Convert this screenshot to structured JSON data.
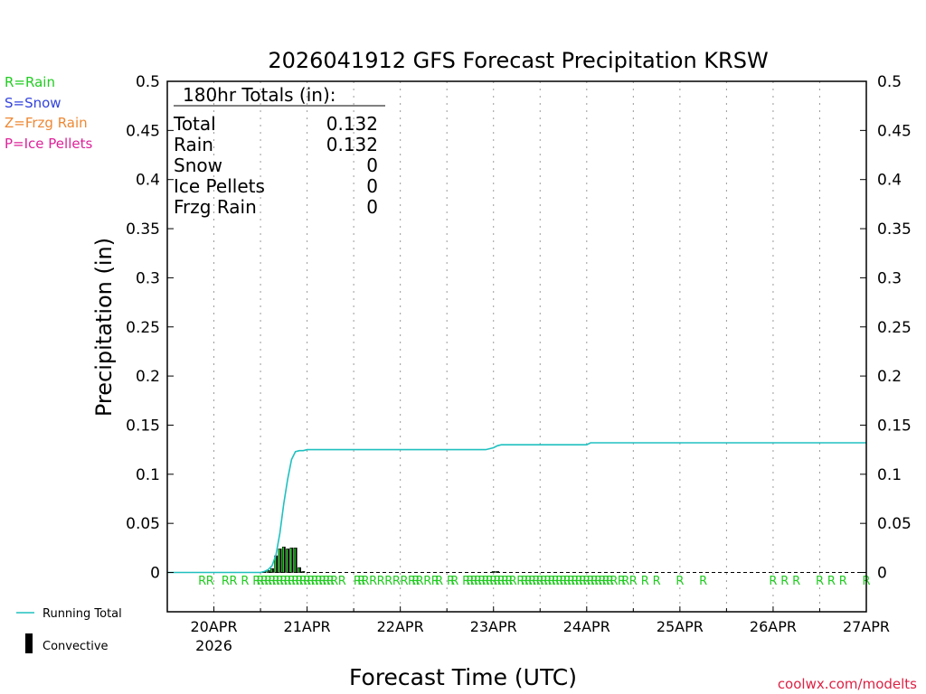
{
  "chart_data": {
    "type": "line",
    "title": "2026041912 GFS Forecast Precipitation KRSW",
    "ylabel": "Precipitation (in)",
    "xlabel": "Forecast Time (UTC)",
    "ylim": [
      -0.04,
      0.5
    ],
    "xlim_hours": [
      0,
      180
    ],
    "y_ticks": [
      0,
      0.05,
      0.1,
      0.15,
      0.2,
      0.25,
      0.3,
      0.35,
      0.4,
      0.45,
      0.5
    ],
    "y_tick_labels": [
      "0",
      "0.05",
      "0.1",
      "0.15",
      "0.2",
      "0.25",
      "0.3",
      "0.35",
      "0.4",
      "0.45",
      "0.5"
    ],
    "x_ticks": [
      {
        "hour": 12,
        "label": "20APR",
        "sublabel": "2026"
      },
      {
        "hour": 36,
        "label": "21APR",
        "sublabel": ""
      },
      {
        "hour": 60,
        "label": "22APR",
        "sublabel": ""
      },
      {
        "hour": 84,
        "label": "23APR",
        "sublabel": ""
      },
      {
        "hour": 108,
        "label": "24APR",
        "sublabel": ""
      },
      {
        "hour": 132,
        "label": "25APR",
        "sublabel": ""
      },
      {
        "hour": 156,
        "label": "26APR",
        "sublabel": ""
      },
      {
        "hour": 180,
        "label": "27APR",
        "sublabel": ""
      }
    ],
    "minor_grid_hours": [
      24,
      48,
      72,
      96,
      120,
      144,
      168
    ],
    "running_total": {
      "name": "Running Total",
      "color": "#20c0c0",
      "x": [
        0,
        24,
        25,
        26,
        27,
        28,
        29,
        30,
        31,
        32,
        33,
        34,
        35,
        36,
        37,
        60,
        72,
        82,
        84,
        85,
        86,
        96,
        108,
        109,
        120,
        150,
        180
      ],
      "y": [
        0,
        0,
        0.001,
        0.003,
        0.007,
        0.018,
        0.04,
        0.07,
        0.095,
        0.115,
        0.123,
        0.124,
        0.124,
        0.125,
        0.125,
        0.125,
        0.125,
        0.125,
        0.127,
        0.129,
        0.13,
        0.13,
        0.13,
        0.132,
        0.132,
        0.132,
        0.132
      ]
    },
    "convective_bars": {
      "name": "Convective",
      "x": [
        25,
        26,
        27,
        28,
        29,
        30,
        31,
        32,
        33,
        34,
        35,
        84,
        85
      ],
      "y": [
        0.001,
        0.002,
        0.004,
        0.017,
        0.024,
        0.026,
        0.024,
        0.025,
        0.025,
        0.005,
        0.001,
        0.001,
        0.001
      ]
    },
    "precip_type_marks": [
      9,
      11,
      15,
      17,
      20,
      23,
      24,
      25,
      26,
      27,
      28,
      29,
      30,
      31,
      32,
      33,
      34,
      35,
      36,
      37,
      38,
      39,
      40,
      41,
      42,
      43,
      45,
      49,
      50,
      51,
      53,
      55,
      57,
      59,
      61,
      63,
      64,
      65,
      67,
      69,
      70,
      73,
      74,
      77,
      78,
      79,
      80,
      81,
      82,
      83,
      84,
      85,
      86,
      87,
      88,
      89,
      91,
      92,
      93,
      94,
      95,
      96,
      97,
      98,
      99,
      100,
      101,
      102,
      103,
      104,
      105,
      106,
      107,
      108,
      109,
      110,
      111,
      112,
      113,
      114,
      115,
      117,
      118,
      120,
      123,
      126,
      132,
      138,
      156,
      159,
      162,
      168,
      171,
      174,
      180
    ],
    "precip_type_letter": "R",
    "totals_box": {
      "heading": "180hr Totals (in):",
      "rows": [
        {
          "label": "Total",
          "value": "0.132"
        },
        {
          "label": "Rain",
          "value": "0.132"
        },
        {
          "label": "Snow",
          "value": "0"
        },
        {
          "label": "Ice Pellets",
          "value": "0"
        },
        {
          "label": "Frzg Rain",
          "value": "0"
        }
      ]
    },
    "type_legend": [
      {
        "text": "R=Rain",
        "color": "#22cc22"
      },
      {
        "text": "S=Snow",
        "color": "#3344dd"
      },
      {
        "text": "Z=Frzg Rain",
        "color": "#ee8833"
      },
      {
        "text": "P=Ice Pellets",
        "color": "#dd2299"
      }
    ],
    "legend": {
      "running_total_label": "Running Total",
      "convective_label": "Convective"
    },
    "credit": "coolwx.com/modelts",
    "colors": {
      "rain": "#22cc22",
      "line": "#20c0c0",
      "credit": "#dd2244"
    }
  }
}
